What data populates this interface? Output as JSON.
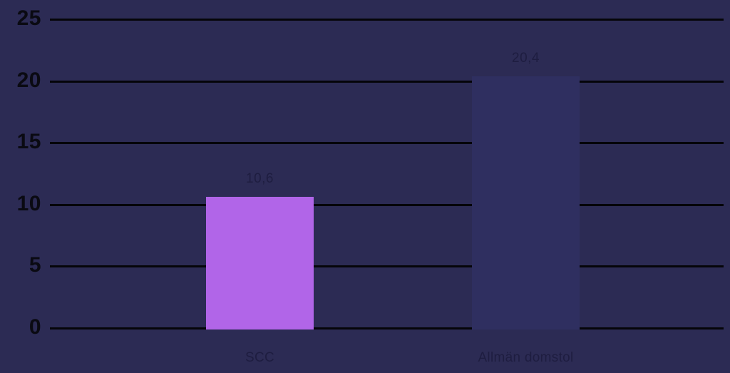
{
  "colors": {
    "background": "#2C2B54",
    "gridline": "#050509",
    "y_tick_label": "#0A0A12",
    "data_label": "#1E1D40",
    "bar_scc": "#B165E8",
    "bar_allman_domstol": "#2F2F60"
  },
  "chart_data": {
    "type": "bar",
    "title": "",
    "xlabel": "",
    "ylabel": "",
    "categories": [
      "SCC",
      "Allmän domstol"
    ],
    "values": [
      10.6,
      20.4
    ],
    "value_labels": [
      "10,6",
      "20,4"
    ],
    "bar_color_keys": [
      "bar_scc",
      "bar_allman_domstol"
    ],
    "ylim": [
      0,
      25
    ],
    "yticks": [
      0,
      5,
      10,
      15,
      20,
      25
    ],
    "grid": true,
    "legend": false
  }
}
